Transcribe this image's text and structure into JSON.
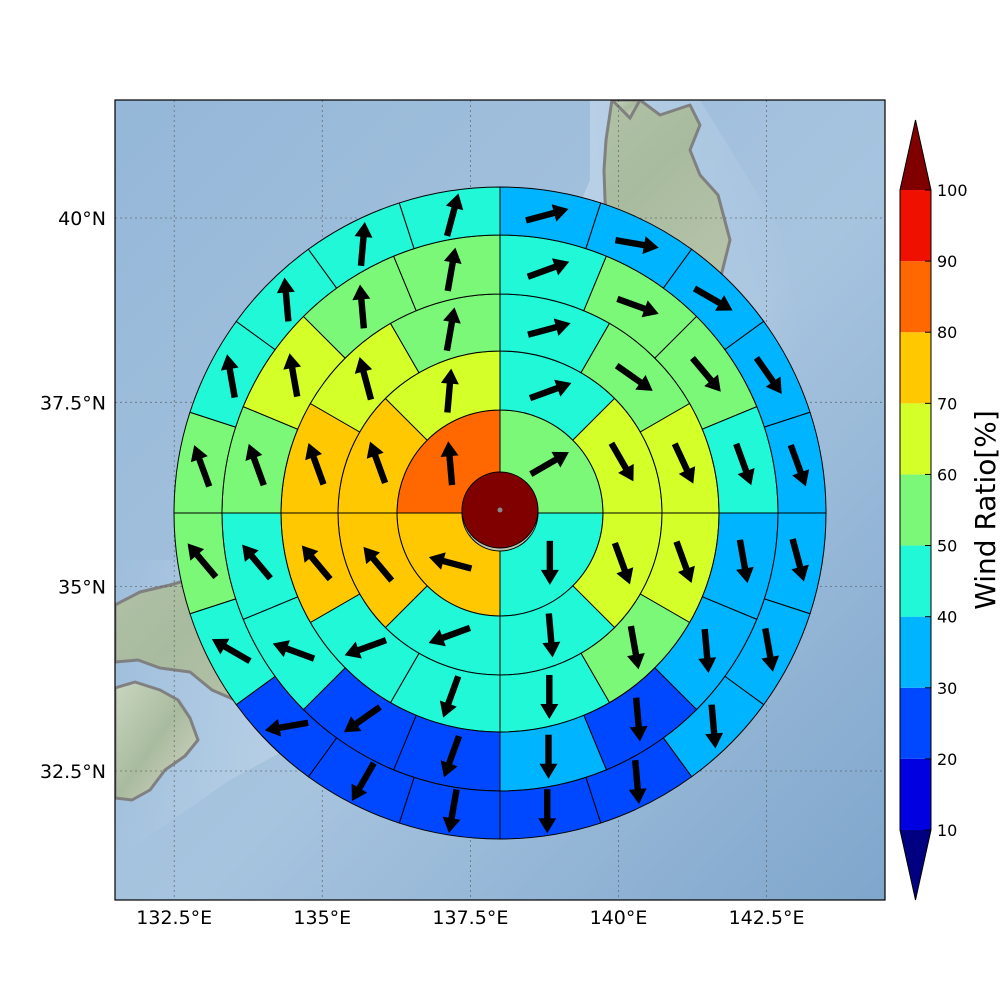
{
  "map": {
    "lon_range": [
      131.5,
      144.5
    ],
    "lat_range": [
      30.75,
      41.6
    ],
    "lon_ticks": [
      {
        "value": 132.5,
        "label": "132.5°E"
      },
      {
        "value": 135,
        "label": "135°E"
      },
      {
        "value": 137.5,
        "label": "137.5°E"
      },
      {
        "value": 140,
        "label": "140°E"
      },
      {
        "value": 142.5,
        "label": "142.5°E"
      }
    ],
    "lat_ticks": [
      {
        "value": 40,
        "label": "40°N"
      },
      {
        "value": 37.5,
        "label": "37.5°N"
      },
      {
        "value": 35,
        "label": "35°N"
      },
      {
        "value": 32.5,
        "label": "32.5°N"
      }
    ],
    "grid": true,
    "center": {
      "lon": 138.0,
      "lat": 36.1
    },
    "coastline_color": "#808080"
  },
  "colorbar": {
    "title": "Wind Ratio[%]",
    "min": 10,
    "max": 100,
    "labels": [
      "10",
      "20",
      "30",
      "40",
      "50",
      "60",
      "70",
      "80",
      "90",
      "100"
    ],
    "colors": [
      "#0000e0",
      "#0048ff",
      "#00b4ff",
      "#20f8d8",
      "#7cf878",
      "#d4ff28",
      "#ffc800",
      "#ff6800",
      "#f01000"
    ],
    "under_color": "#000080",
    "over_color": "#800000",
    "extend": "both"
  },
  "chart_data": {
    "type": "polar-sector-wind-map",
    "center_disk": {
      "value": 100,
      "arrow": false
    },
    "rings": [
      {
        "ring": 1,
        "sectors": 4,
        "sector_start_deg": 0,
        "values": [
          55,
          45,
          72,
          85
        ],
        "arrow_bearings": [
          60,
          180,
          285,
          355
        ]
      },
      {
        "ring": 2,
        "sectors": 8,
        "sector_start_deg": 0,
        "values": [
          45,
          65,
          65,
          45,
          40,
          75,
          72,
          65
        ],
        "arrow_bearings": [
          70,
          150,
          160,
          175,
          250,
          320,
          340,
          5
        ],
        "arrow_mid_bearings": [
          45,
          135,
          225,
          315
        ]
      },
      {
        "ring": 3,
        "sectors": 12,
        "sector_start_deg": 0,
        "values": [
          45,
          55,
          65,
          65,
          50,
          45,
          40,
          40,
          75,
          70,
          65,
          55
        ],
        "arrow_bearings": [
          75,
          125,
          155,
          160,
          170,
          180,
          200,
          250,
          320,
          340,
          345,
          10
        ]
      },
      {
        "ring": 4,
        "sectors": 16,
        "sector_start_deg": 0,
        "values": [
          40,
          50,
          55,
          45,
          35,
          35,
          25,
          35,
          25,
          25,
          45,
          45,
          55,
          60,
          55,
          50
        ],
        "arrow_bearings": [
          70,
          110,
          140,
          160,
          170,
          175,
          175,
          180,
          200,
          235,
          290,
          320,
          340,
          350,
          355,
          10
        ]
      },
      {
        "ring": 5,
        "sectors": 20,
        "sector_start_deg": 0,
        "values": [
          35,
          35,
          35,
          35,
          30,
          35,
          35,
          35,
          25,
          25,
          25,
          25,
          20,
          45,
          50,
          55,
          45,
          45,
          45,
          40
        ],
        "arrow_bearings": [
          75,
          100,
          120,
          145,
          160,
          165,
          170,
          175,
          175,
          180,
          190,
          210,
          260,
          300,
          320,
          340,
          350,
          355,
          5,
          15
        ]
      },
      {
        "ring": 6,
        "sectors": 24,
        "sector_start_deg": 0,
        "values": [
          35,
          35,
          35,
          35,
          25,
          25,
          35,
          35,
          35,
          35,
          25,
          25,
          25,
          25,
          25,
          20,
          45,
          45,
          45,
          45,
          45,
          40,
          40,
          35
        ],
        "arrow_bearings": [
          70,
          100,
          120,
          150,
          160,
          165,
          170,
          175,
          175,
          180,
          185,
          190,
          205,
          225,
          250,
          280,
          300,
          320,
          340,
          350,
          355,
          5,
          15,
          30
        ]
      }
    ]
  }
}
